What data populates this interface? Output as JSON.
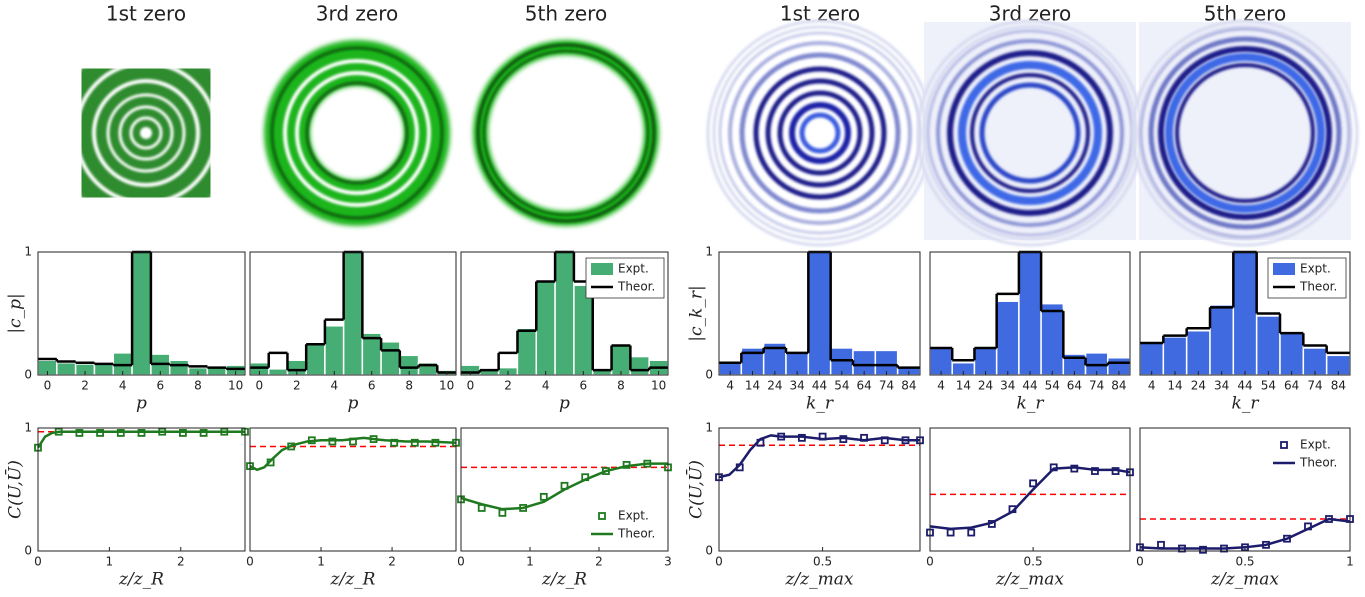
{
  "image_titles": [
    "1st zero",
    "3rd zero",
    "5th zero",
    "1st zero",
    "3rd zero",
    "5th zero"
  ],
  "chart_data": [
    {
      "type": "bar",
      "xlabel": "p",
      "ylabel": "|c_p|",
      "x": [
        0,
        1,
        2,
        3,
        4,
        5,
        6,
        7,
        8,
        9,
        10
      ],
      "xlim": [
        -0.5,
        10.5
      ],
      "xticks": [
        0,
        2,
        4,
        6,
        8,
        10
      ],
      "ylim": [
        0,
        1
      ],
      "yticks": [
        0,
        1
      ],
      "series": [
        {
          "name": "Expt.",
          "color": "#46ad74",
          "values": [
            0.12,
            0.1,
            0.09,
            0.09,
            0.18,
            1.0,
            0.17,
            0.12,
            0.06,
            0.06,
            0.08
          ]
        },
        {
          "name": "Theor.",
          "color": "#000000",
          "values": [
            0.13,
            0.11,
            0.1,
            0.09,
            0.08,
            1.0,
            0.09,
            0.08,
            0.07,
            0.06,
            0.05
          ]
        }
      ]
    },
    {
      "type": "bar",
      "xlabel": "p",
      "x": [
        0,
        1,
        2,
        3,
        4,
        5,
        6,
        7,
        8,
        9,
        10
      ],
      "xlim": [
        -0.5,
        10.5
      ],
      "xticks": [
        0,
        2,
        4,
        6,
        8,
        10
      ],
      "ylim": [
        0,
        1
      ],
      "series": [
        {
          "name": "Expt.",
          "color": "#46ad74",
          "values": [
            0.1,
            0.05,
            0.12,
            0.25,
            0.4,
            1.0,
            0.34,
            0.27,
            0.16,
            0.1,
            0.04
          ]
        },
        {
          "name": "Theor.",
          "color": "#000000",
          "values": [
            0.06,
            0.18,
            0.04,
            0.25,
            0.45,
            1.0,
            0.3,
            0.2,
            0.06,
            0.08,
            0.02
          ]
        }
      ]
    },
    {
      "type": "bar",
      "xlabel": "p",
      "x": [
        0,
        1,
        2,
        3,
        4,
        5,
        6,
        7,
        8,
        9,
        10
      ],
      "xlim": [
        -0.5,
        10.5
      ],
      "xticks": [
        0,
        2,
        4,
        6,
        8,
        10
      ],
      "ylim": [
        0,
        1
      ],
      "legend": "upper right",
      "series": [
        {
          "name": "Expt.",
          "color": "#46ad74",
          "values": [
            0.08,
            0.04,
            0.06,
            0.38,
            0.76,
            1.0,
            0.73,
            0.04,
            0.24,
            0.15,
            0.12
          ]
        },
        {
          "name": "Theor.",
          "color": "#000000",
          "values": [
            0.02,
            0.04,
            0.18,
            0.36,
            0.76,
            1.0,
            0.76,
            0.04,
            0.24,
            0.04,
            0.06
          ]
        }
      ]
    },
    {
      "type": "bar",
      "xlabel": "k_r",
      "ylabel": "|c_k_r|",
      "x": [
        4,
        14,
        24,
        34,
        44,
        54,
        64,
        74,
        84
      ],
      "xlim": [
        -1,
        89
      ],
      "xticks": [
        4,
        14,
        24,
        34,
        44,
        54,
        64,
        74,
        84
      ],
      "ylim": [
        0,
        1
      ],
      "yticks": [
        0,
        1
      ],
      "series": [
        {
          "name": "Expt.",
          "color": "#3f6ae0",
          "values": [
            0.1,
            0.22,
            0.26,
            0.18,
            1.0,
            0.22,
            0.2,
            0.2,
            0.06
          ]
        },
        {
          "name": "Theor.",
          "color": "#000000",
          "values": [
            0.1,
            0.18,
            0.22,
            0.18,
            1.0,
            0.12,
            0.08,
            0.08,
            0.06
          ]
        }
      ]
    },
    {
      "type": "bar",
      "xlabel": "k_r",
      "x": [
        4,
        14,
        24,
        34,
        44,
        54,
        64,
        74,
        84
      ],
      "xlim": [
        -1,
        89
      ],
      "xticks": [
        4,
        14,
        24,
        34,
        44,
        54,
        64,
        74,
        84
      ],
      "ylim": [
        0,
        1
      ],
      "series": [
        {
          "name": "Expt.",
          "color": "#3f6ae0",
          "values": [
            0.22,
            0.1,
            0.23,
            0.6,
            1.0,
            0.58,
            0.17,
            0.18,
            0.14
          ]
        },
        {
          "name": "Theor.",
          "color": "#000000",
          "values": [
            0.22,
            0.12,
            0.22,
            0.66,
            1.0,
            0.52,
            0.14,
            0.08,
            0.1
          ]
        }
      ]
    },
    {
      "type": "bar",
      "xlabel": "k_r",
      "x": [
        4,
        14,
        24,
        34,
        44,
        54,
        64,
        74,
        84
      ],
      "xlim": [
        -1,
        89
      ],
      "xticks": [
        4,
        14,
        24,
        34,
        44,
        54,
        64,
        74,
        84
      ],
      "ylim": [
        0,
        1
      ],
      "legend": "upper right",
      "series": [
        {
          "name": "Expt.",
          "color": "#3f6ae0",
          "values": [
            0.26,
            0.31,
            0.36,
            0.57,
            1.0,
            0.48,
            0.35,
            0.22,
            0.16
          ]
        },
        {
          "name": "Theor.",
          "color": "#000000",
          "values": [
            0.26,
            0.32,
            0.38,
            0.55,
            1.0,
            0.5,
            0.34,
            0.24,
            0.18
          ]
        }
      ]
    },
    {
      "type": "line",
      "xlabel": "z/z_R",
      "ylabel": "C(U,Ū)",
      "xlim": [
        0,
        2.9
      ],
      "xticks": [
        0,
        1,
        2
      ],
      "ylim": [
        0,
        1
      ],
      "yticks": [
        0,
        1
      ],
      "reference": 0.97,
      "reference_color": "#ff0000",
      "series": [
        {
          "name": "Expt.",
          "color": "#1f7a1f",
          "x": [
            0,
            0.29,
            0.58,
            0.87,
            1.16,
            1.45,
            1.74,
            2.03,
            2.32,
            2.61,
            2.9
          ],
          "values": [
            0.84,
            0.97,
            0.96,
            0.96,
            0.96,
            0.96,
            0.97,
            0.96,
            0.96,
            0.97,
            0.97
          ]
        },
        {
          "name": "Theor.",
          "color": "#1f7a1f",
          "x": [
            0,
            0.1,
            0.2,
            0.3,
            0.5,
            1,
            1.5,
            2,
            2.5,
            2.9
          ],
          "values": [
            0.84,
            0.93,
            0.96,
            0.97,
            0.97,
            0.97,
            0.97,
            0.97,
            0.97,
            0.97
          ]
        }
      ]
    },
    {
      "type": "line",
      "xlabel": "z/z_R",
      "xlim": [
        0,
        2.9
      ],
      "xticks": [
        0,
        1,
        2
      ],
      "ylim": [
        0,
        1
      ],
      "reference": 0.85,
      "reference_color": "#ff0000",
      "series": [
        {
          "name": "Expt.",
          "color": "#1f7a1f",
          "x": [
            0,
            0.29,
            0.58,
            0.87,
            1.16,
            1.45,
            1.74,
            2.03,
            2.32,
            2.61,
            2.9
          ],
          "values": [
            0.69,
            0.72,
            0.85,
            0.9,
            0.89,
            0.89,
            0.91,
            0.88,
            0.88,
            0.88,
            0.88
          ]
        },
        {
          "name": "Theor.",
          "color": "#1f7a1f",
          "x": [
            0,
            0.1,
            0.2,
            0.3,
            0.45,
            0.6,
            0.8,
            1,
            1.3,
            1.6,
            1.9,
            2.2,
            2.5,
            2.9
          ],
          "values": [
            0.69,
            0.66,
            0.68,
            0.74,
            0.82,
            0.86,
            0.89,
            0.9,
            0.9,
            0.92,
            0.9,
            0.89,
            0.89,
            0.88
          ]
        }
      ]
    },
    {
      "type": "line",
      "xlabel": "z/z_R",
      "xlim": [
        0,
        3
      ],
      "xticks": [
        0,
        1,
        2,
        3
      ],
      "ylim": [
        0,
        1
      ],
      "reference": 0.68,
      "reference_color": "#ff0000",
      "legend": "lower right",
      "series": [
        {
          "name": "Expt.",
          "color": "#1f7a1f",
          "x": [
            0,
            0.3,
            0.6,
            0.9,
            1.2,
            1.5,
            1.8,
            2.1,
            2.4,
            2.7,
            3
          ],
          "values": [
            0.42,
            0.35,
            0.31,
            0.35,
            0.44,
            0.53,
            0.6,
            0.65,
            0.7,
            0.71,
            0.68
          ]
        },
        {
          "name": "Theor.",
          "color": "#1f7a1f",
          "x": [
            0,
            0.3,
            0.6,
            0.9,
            1.2,
            1.5,
            1.8,
            2.1,
            2.4,
            2.7,
            3
          ],
          "values": [
            0.43,
            0.38,
            0.34,
            0.35,
            0.4,
            0.5,
            0.58,
            0.65,
            0.69,
            0.71,
            0.71
          ]
        }
      ]
    },
    {
      "type": "line",
      "xlabel": "z/z_max",
      "ylabel": "C(U,Ū)",
      "xlim": [
        0,
        0.97
      ],
      "xticks": [
        0,
        0.5
      ],
      "ylim": [
        0,
        1
      ],
      "yticks": [
        0,
        1
      ],
      "reference": 0.86,
      "reference_color": "#ff0000",
      "series": [
        {
          "name": "Expt.",
          "color": "#1c1c6b",
          "x": [
            0,
            0.1,
            0.2,
            0.3,
            0.4,
            0.5,
            0.6,
            0.7,
            0.8,
            0.9,
            0.97
          ],
          "values": [
            0.6,
            0.68,
            0.88,
            0.93,
            0.92,
            0.93,
            0.91,
            0.92,
            0.9,
            0.9,
            0.9
          ]
        },
        {
          "name": "Theor.",
          "color": "#1c1c6b",
          "x": [
            0,
            0.05,
            0.1,
            0.15,
            0.2,
            0.25,
            0.3,
            0.4,
            0.5,
            0.6,
            0.7,
            0.8,
            0.9,
            0.97
          ],
          "values": [
            0.6,
            0.62,
            0.7,
            0.82,
            0.91,
            0.94,
            0.93,
            0.93,
            0.91,
            0.92,
            0.9,
            0.92,
            0.9,
            0.9
          ]
        }
      ]
    },
    {
      "type": "line",
      "xlabel": "z/z_max",
      "xlim": [
        0,
        0.97
      ],
      "xticks": [
        0,
        0.5
      ],
      "ylim": [
        0,
        1
      ],
      "reference": 0.46,
      "reference_color": "#ff0000",
      "series": [
        {
          "name": "Expt.",
          "color": "#1c1c6b",
          "x": [
            0,
            0.1,
            0.2,
            0.3,
            0.4,
            0.5,
            0.6,
            0.7,
            0.8,
            0.9,
            0.97
          ],
          "values": [
            0.15,
            0.15,
            0.15,
            0.22,
            0.34,
            0.55,
            0.68,
            0.67,
            0.65,
            0.65,
            0.64
          ]
        },
        {
          "name": "Theor.",
          "color": "#1c1c6b",
          "x": [
            0,
            0.1,
            0.2,
            0.3,
            0.4,
            0.5,
            0.6,
            0.7,
            0.8,
            0.9,
            0.97
          ],
          "values": [
            0.2,
            0.18,
            0.19,
            0.23,
            0.32,
            0.5,
            0.67,
            0.68,
            0.66,
            0.66,
            0.64
          ]
        }
      ]
    },
    {
      "type": "line",
      "xlabel": "z/z_max",
      "xlim": [
        0,
        1
      ],
      "xticks": [
        0,
        0.5,
        1
      ],
      "ylim": [
        0,
        1
      ],
      "reference": 0.26,
      "reference_color": "#ff0000",
      "legend": "upper right",
      "series": [
        {
          "name": "Expt.",
          "color": "#1c1c6b",
          "x": [
            0,
            0.1,
            0.2,
            0.3,
            0.4,
            0.5,
            0.6,
            0.7,
            0.8,
            0.9,
            1
          ],
          "values": [
            0.03,
            0.05,
            0.02,
            0.01,
            0.02,
            0.03,
            0.05,
            0.1,
            0.2,
            0.26,
            0.26
          ]
        },
        {
          "name": "Theor.",
          "color": "#1c1c6b",
          "x": [
            0,
            0.1,
            0.2,
            0.3,
            0.4,
            0.5,
            0.6,
            0.7,
            0.8,
            0.9,
            1
          ],
          "values": [
            0.03,
            0.02,
            0.02,
            0.02,
            0.02,
            0.03,
            0.05,
            0.1,
            0.18,
            0.26,
            0.24
          ]
        }
      ]
    }
  ]
}
